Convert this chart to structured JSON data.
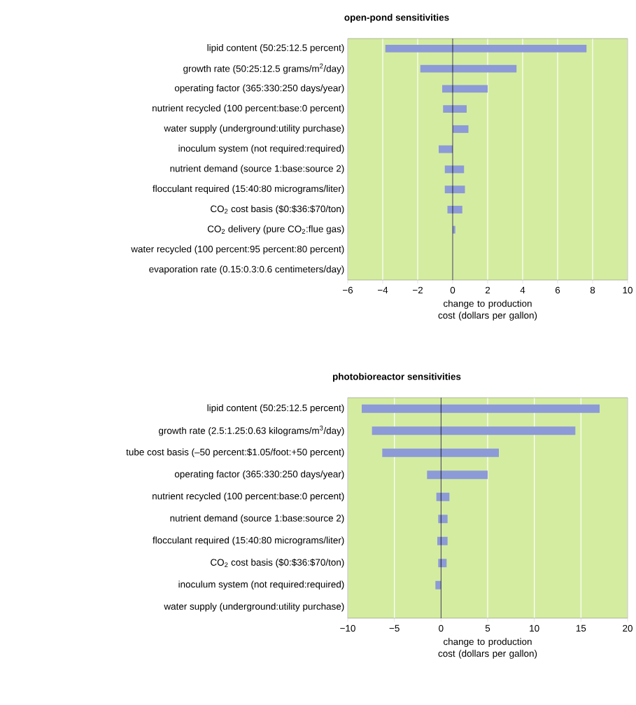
{
  "chart_data": [
    {
      "type": "bar",
      "orientation": "horizontal",
      "title": "open-pond sensitivities",
      "xlabel": "change to production cost (dollars per gallon)",
      "categories": [
        "lipid content (50:25:12.5 percent)",
        "growth rate (50:25:12.5 grams/m$^{2}$/day)",
        "operating factor (365:330:250 days/year)",
        "nutrient recycled (100 percent:base:0 percent)",
        "water supply (underground:utility purchase)",
        "inoculum system (not required:required)",
        "nutrient demand (source 1:base:source 2)",
        "flocculant required (15:40:80 micrograms/liter)",
        "CO$_{2}$ cost basis ($0:$36:$70/ton)",
        "CO$_{2}$ delivery (pure CO$_{2}$:flue gas)",
        "water recycled (100 percent:95 percent:80 percent)",
        "evaporation rate (0.15:0.3:0.6 centimeters/day)"
      ],
      "base": [
        -3.85,
        -1.85,
        -0.6,
        -0.55,
        0,
        -0.8,
        -0.45,
        -0.45,
        -0.3,
        0,
        null,
        null
      ],
      "values": [
        11.5,
        5.5,
        2.6,
        1.35,
        0.9,
        0.8,
        1.1,
        1.15,
        0.85,
        0.15,
        null,
        null
      ],
      "color": "#8c9ad8",
      "xlim": [
        -6,
        10
      ],
      "xticks": [
        {
          "value": -6,
          "label": "−6"
        },
        {
          "value": -4,
          "label": "−4"
        },
        {
          "value": -2,
          "label": "−2"
        },
        0,
        2,
        4,
        6,
        8,
        10
      ],
      "grid": "x",
      "ref_lines": [
        {
          "axis": "x",
          "value": 0,
          "color": "#000000"
        }
      ]
    },
    {
      "type": "bar",
      "orientation": "horizontal",
      "title": "photobioreactor sensitivities",
      "xlabel": "change to production cost (dollars per gallon)",
      "categories": [
        "lipid content (50:25:12.5 percent)",
        "growth rate (2.5:1.25:0.63 kilograms/m$^{3}$/day)",
        "tube cost basis (–50 percent:$1.05/foot:+50 percent)",
        "operating factor (365:330:250 days/year)",
        "nutrient recycled (100 percent:base:0 percent)",
        "nutrient demand (source 1:base:source 2)",
        "flocculant required (15:40:80 micrograms/liter)",
        "CO$_{2}$ cost basis ($0:$36:$70/ton)",
        "inoculum system (not required:required)",
        "water supply (underground:utility purchase)"
      ],
      "base": [
        -8.5,
        -7.4,
        -6.3,
        -1.5,
        -0.5,
        -0.3,
        -0.4,
        -0.3,
        -0.6,
        null
      ],
      "values": [
        25.5,
        21.8,
        12.5,
        6.5,
        1.4,
        1,
        1.1,
        0.9,
        0.6,
        null
      ],
      "color": "#8c9ad8",
      "xlim": [
        -10,
        20
      ],
      "xticks": [
        {
          "value": -10,
          "label": "−10"
        },
        {
          "value": -5,
          "label": "−5"
        },
        0,
        5,
        10,
        15,
        20
      ],
      "grid": "x",
      "ref_lines": [
        {
          "axis": "x",
          "value": 0,
          "color": "#000000"
        }
      ]
    }
  ]
}
